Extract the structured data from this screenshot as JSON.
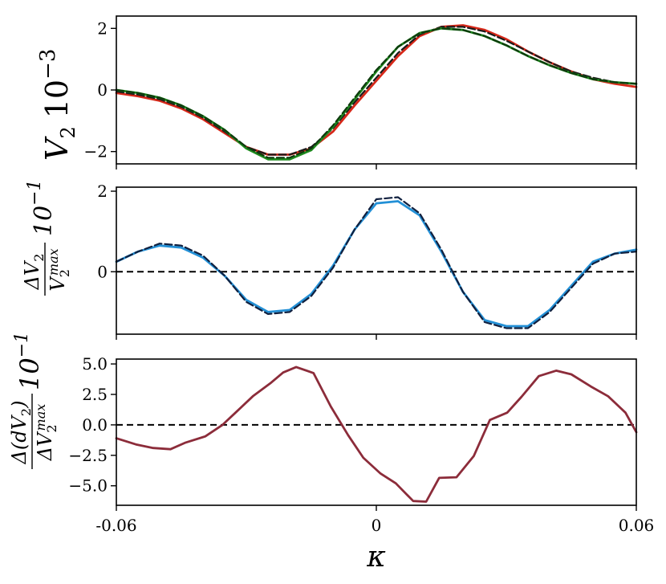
{
  "chart_data": [
    {
      "type": "line",
      "ylabel": "V_2 10^-3",
      "ylabel_main": "V",
      "ylabel_sub": "2",
      "ylabel_scale": "10",
      "ylabel_exp": "−3",
      "xlim": [
        -0.06,
        0.06
      ],
      "ylim": [
        -2.4,
        2.4
      ],
      "yticks": [
        -2,
        0,
        2
      ],
      "ytick_labels": [
        "−2",
        "0",
        "2"
      ],
      "grid": false,
      "series": [
        {
          "color": "#d62718",
          "dash": false,
          "width": 2.8,
          "x": [
            -0.06,
            -0.055,
            -0.05,
            -0.045,
            -0.04,
            -0.035,
            -0.03,
            -0.025,
            -0.02,
            -0.015,
            -0.01,
            -0.005,
            0,
            0.005,
            0.01,
            0.015,
            0.02,
            0.025,
            0.03,
            0.035,
            0.04,
            0.045,
            0.05,
            0.055,
            0.06
          ],
          "y": [
            -0.1,
            -0.2,
            -0.35,
            -0.6,
            -0.95,
            -1.4,
            -1.85,
            -2.1,
            -2.1,
            -1.9,
            -1.35,
            -0.5,
            0.3,
            1.1,
            1.75,
            2.05,
            2.1,
            1.95,
            1.65,
            1.25,
            0.9,
            0.6,
            0.35,
            0.2,
            0.1
          ]
        },
        {
          "color": "#1a1a1a",
          "dash": true,
          "width": 2.2,
          "x": [
            -0.06,
            -0.055,
            -0.05,
            -0.045,
            -0.04,
            -0.035,
            -0.03,
            -0.025,
            -0.02,
            -0.015,
            -0.01,
            -0.005,
            0,
            0.005,
            0.01,
            0.015,
            0.02,
            0.025,
            0.03,
            0.035,
            0.04,
            0.045,
            0.05,
            0.055,
            0.06
          ],
          "y": [
            -0.05,
            -0.15,
            -0.3,
            -0.55,
            -0.9,
            -1.35,
            -1.85,
            -2.1,
            -2.1,
            -1.85,
            -1.25,
            -0.4,
            0.4,
            1.2,
            1.8,
            2.05,
            2.05,
            1.9,
            1.6,
            1.25,
            0.9,
            0.6,
            0.4,
            0.25,
            0.2
          ]
        },
        {
          "color": "#1e8a1e",
          "dash": false,
          "width": 2.8,
          "x": [
            -0.06,
            -0.055,
            -0.05,
            -0.045,
            -0.04,
            -0.035,
            -0.03,
            -0.025,
            -0.02,
            -0.015,
            -0.01,
            -0.005,
            0,
            0.005,
            0.01,
            0.015,
            0.02,
            0.025,
            0.03,
            0.035,
            0.04,
            0.045,
            0.05,
            0.055,
            0.06
          ],
          "y": [
            0.0,
            -0.1,
            -0.25,
            -0.5,
            -0.85,
            -1.3,
            -1.9,
            -2.25,
            -2.25,
            -1.95,
            -1.2,
            -0.3,
            0.6,
            1.4,
            1.85,
            2.0,
            1.95,
            1.75,
            1.45,
            1.1,
            0.8,
            0.55,
            0.35,
            0.25,
            0.2
          ]
        },
        {
          "color": "#0d3a0d",
          "dash": true,
          "width": 2.2,
          "x": [
            -0.06,
            -0.055,
            -0.05,
            -0.045,
            -0.04,
            -0.035,
            -0.03,
            -0.025,
            -0.02,
            -0.015,
            -0.01,
            -0.005,
            0,
            0.005,
            0.01,
            0.015,
            0.02,
            0.025,
            0.03,
            0.035,
            0.04,
            0.045,
            0.05,
            0.055,
            0.06
          ],
          "y": [
            0.0,
            -0.1,
            -0.25,
            -0.5,
            -0.85,
            -1.3,
            -1.85,
            -2.2,
            -2.2,
            -1.9,
            -1.15,
            -0.25,
            0.65,
            1.4,
            1.85,
            2.0,
            1.95,
            1.75,
            1.45,
            1.1,
            0.8,
            0.55,
            0.35,
            0.25,
            0.2
          ]
        }
      ]
    },
    {
      "type": "line",
      "ylabel": "ΔV_2 / V_2^max 10^-1",
      "ylabel_num": "ΔV",
      "ylabel_num_sub": "2",
      "ylabel_den": "V",
      "ylabel_den_sub": "2",
      "ylabel_den_sup": "max",
      "ylabel_scale": "10",
      "ylabel_exp": "−1",
      "xlim": [
        -0.06,
        0.06
      ],
      "ylim": [
        -1.55,
        2.1
      ],
      "yticks": [
        0,
        2
      ],
      "ytick_labels": [
        "0",
        "2"
      ],
      "hline": 0,
      "grid": false,
      "series": [
        {
          "color": "#2390d6",
          "dash": false,
          "width": 2.8,
          "x": [
            -0.06,
            -0.055,
            -0.05,
            -0.045,
            -0.04,
            -0.035,
            -0.03,
            -0.025,
            -0.02,
            -0.015,
            -0.01,
            -0.005,
            0,
            0.005,
            0.01,
            0.015,
            0.02,
            0.025,
            0.03,
            0.035,
            0.04,
            0.045,
            0.05,
            0.055,
            0.06
          ],
          "y": [
            0.25,
            0.5,
            0.65,
            0.6,
            0.35,
            -0.1,
            -0.7,
            -1.0,
            -0.95,
            -0.55,
            0.15,
            1.05,
            1.7,
            1.75,
            1.4,
            0.5,
            -0.5,
            -1.2,
            -1.35,
            -1.35,
            -0.95,
            -0.35,
            0.25,
            0.45,
            0.55
          ]
        },
        {
          "color": "#10203f",
          "dash": true,
          "width": 2.2,
          "x": [
            -0.06,
            -0.055,
            -0.05,
            -0.045,
            -0.04,
            -0.035,
            -0.03,
            -0.025,
            -0.02,
            -0.015,
            -0.01,
            -0.005,
            0,
            0.005,
            0.01,
            0.015,
            0.02,
            0.025,
            0.03,
            0.035,
            0.04,
            0.045,
            0.05,
            0.055,
            0.06
          ],
          "y": [
            0.25,
            0.5,
            0.7,
            0.65,
            0.4,
            -0.1,
            -0.75,
            -1.05,
            -1.0,
            -0.6,
            0.1,
            1.05,
            1.8,
            1.85,
            1.45,
            0.55,
            -0.5,
            -1.25,
            -1.4,
            -1.4,
            -1.0,
            -0.4,
            0.2,
            0.45,
            0.5
          ]
        }
      ]
    },
    {
      "type": "line",
      "ylabel": "Δ(dV_2) / ΔV_2^max 10^-1",
      "ylabel_num": "Δ(dV",
      "ylabel_num_sub": "2",
      "ylabel_num_tail": ")",
      "ylabel_den": "ΔV",
      "ylabel_den_sub": "2",
      "ylabel_den_sup": "max",
      "ylabel_scale": "10",
      "ylabel_exp": "−1",
      "xlabel": "κ",
      "xlim": [
        -0.06,
        0.06
      ],
      "ylim": [
        -6.6,
        5.4
      ],
      "yticks": [
        -5.0,
        -2.5,
        0.0,
        2.5,
        5.0
      ],
      "ytick_labels": [
        "−5.0",
        "−2.5",
        "0.0",
        "2.5",
        "5.0"
      ],
      "xticks": [
        -0.06,
        0,
        0.06
      ],
      "xtick_labels": [
        "-0.06",
        "0",
        "0.06"
      ],
      "hline": 0,
      "grid": false,
      "series": [
        {
          "color": "#8c2c3a",
          "dash": false,
          "width": 2.8,
          "x": [
            -0.06,
            -0.0555,
            -0.0515,
            -0.0475,
            -0.044,
            -0.0395,
            -0.0355,
            -0.0322,
            -0.0285,
            -0.0245,
            -0.0215,
            -0.0185,
            -0.0145,
            -0.0105,
            -0.0065,
            -0.003,
            0.001,
            0.0045,
            0.0085,
            0.0115,
            0.0145,
            0.0185,
            0.0225,
            0.0262,
            0.0302,
            0.0335,
            0.0375,
            0.0415,
            0.045,
            0.0495,
            0.0535,
            0.0575,
            0.06
          ],
          "y": [
            -1.1,
            -1.6,
            -1.9,
            -2.0,
            -1.45,
            -0.95,
            0.0,
            1.1,
            2.35,
            3.4,
            4.3,
            4.75,
            4.25,
            1.5,
            -0.85,
            -2.7,
            -4.0,
            -4.8,
            -6.25,
            -6.3,
            -4.35,
            -4.3,
            -2.55,
            0.4,
            1.0,
            2.3,
            4.0,
            4.45,
            4.15,
            3.15,
            2.35,
            1.0,
            -0.6
          ]
        }
      ]
    }
  ]
}
